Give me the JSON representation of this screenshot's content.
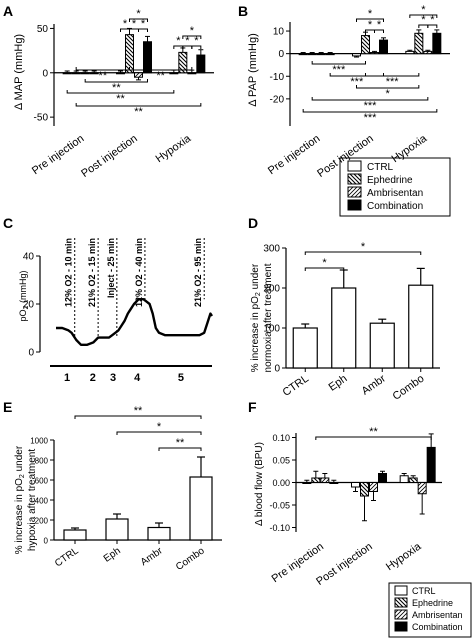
{
  "panel_labels": [
    "A",
    "B",
    "C",
    "D",
    "E",
    "F"
  ],
  "legend_ab": [
    "CTRL",
    "Ephedrine",
    "Ambrisentan",
    "Combination"
  ],
  "legend_f": [
    "CTRL",
    "Ephedrine",
    "Ambrisentan",
    "Combination"
  ],
  "colors": {
    "ink": "#000000",
    "paper": "#ffffff",
    "hatch": "#000000"
  },
  "chart_data": [
    {
      "panel": "A",
      "type": "bar",
      "ylabel": "Δ MAP (mmHg)",
      "ylim": [
        -60,
        55
      ],
      "yticks": [
        -50,
        0,
        50
      ],
      "categories": [
        "Pre injection",
        "Post injection",
        "Hypoxia"
      ],
      "series": [
        {
          "name": "CTRL",
          "values": [
            0,
            0,
            0
          ],
          "errors": [
            2,
            2,
            3
          ]
        },
        {
          "name": "Ephedrine",
          "values": [
            0,
            43,
            23
          ],
          "errors": [
            2,
            7,
            5
          ]
        },
        {
          "name": "Ambrisentan",
          "values": [
            0,
            -5,
            0
          ],
          "errors": [
            2,
            3,
            3
          ]
        },
        {
          "name": "Combination",
          "values": [
            0,
            35,
            20
          ],
          "errors": [
            2,
            6,
            6
          ]
        }
      ],
      "annotations": [
        "*",
        "*",
        "*",
        "*",
        "*",
        "*",
        "*",
        "*",
        "**",
        "**",
        "**",
        "**",
        "**"
      ]
    },
    {
      "panel": "B",
      "type": "bar",
      "ylabel": "Δ PAP (mmHg)",
      "ylim": [
        -32,
        14
      ],
      "yticks": [
        -20,
        -10,
        0,
        10
      ],
      "categories": [
        "Pre injection",
        "Post injection",
        "Hypoxia"
      ],
      "series": [
        {
          "name": "CTRL",
          "values": [
            0,
            -1,
            1
          ],
          "errors": [
            0.5,
            0.5,
            0.5
          ]
        },
        {
          "name": "Ephedrine",
          "values": [
            0,
            8,
            9
          ],
          "errors": [
            0.5,
            1.5,
            1.5
          ]
        },
        {
          "name": "Ambrisentan",
          "values": [
            0,
            0.5,
            1
          ],
          "errors": [
            0.5,
            0.5,
            0.5
          ]
        },
        {
          "name": "Combination",
          "values": [
            0,
            6,
            9
          ],
          "errors": [
            0.5,
            1,
            1.5
          ]
        }
      ],
      "annotations": [
        "*",
        "*",
        "*",
        "*",
        "*",
        "*",
        "***",
        "***",
        "***",
        "*",
        "***",
        "***"
      ]
    },
    {
      "panel": "C",
      "type": "line",
      "ylabel": "pO2 (mmHg)",
      "ylim": [
        0,
        40
      ],
      "yticks": [
        0,
        20,
        40
      ],
      "markers": [
        "12% O2 - 10 min",
        "21% O2 - 15 min",
        "Inject - 25 min",
        "12% O2 - 40 min",
        "21% O2 - 95 min"
      ],
      "phases": [
        "1",
        "2",
        "3",
        "4",
        "5"
      ]
    },
    {
      "panel": "D",
      "type": "bar",
      "ylabel": "% increase in pO2 under normoxia after treatment",
      "ylim": [
        0,
        300
      ],
      "yticks": [
        0,
        100,
        200,
        300
      ],
      "categories": [
        "CTRL",
        "Eph",
        "Ambr",
        "Combo"
      ],
      "values": [
        100,
        200,
        112,
        207
      ],
      "errors": [
        10,
        45,
        10,
        42
      ],
      "annotations": [
        "*",
        "*"
      ]
    },
    {
      "panel": "E",
      "type": "bar",
      "ylabel": "% increase in pO2 under hypoxia after treatment",
      "ylim": [
        0,
        1000
      ],
      "yticks": [
        0,
        200,
        400,
        600,
        800,
        1000
      ],
      "categories": [
        "CTRL",
        "Eph",
        "Ambr",
        "Combo"
      ],
      "values": [
        100,
        210,
        125,
        630
      ],
      "errors": [
        20,
        50,
        45,
        200
      ],
      "annotations": [
        "**",
        "*",
        "**"
      ]
    },
    {
      "panel": "F",
      "type": "bar",
      "ylabel": "Δ blood flow (BPU)",
      "ylim": [
        -0.11,
        0.11
      ],
      "yticks": [
        -0.1,
        -0.05,
        0.0,
        0.05,
        0.1
      ],
      "tick_labels": [
        "-0.10",
        "-0.05",
        "0.00",
        "0.05",
        "0.10"
      ],
      "categories": [
        "Pre injection",
        "Post injection",
        "Hypoxia"
      ],
      "series": [
        {
          "name": "CTRL",
          "values": [
            0.0,
            -0.01,
            0.015
          ],
          "errors": [
            0.005,
            0.01,
            0.005
          ]
        },
        {
          "name": "Ephedrine",
          "values": [
            0.01,
            -0.03,
            0.01
          ],
          "errors": [
            0.015,
            0.055,
            0.005
          ]
        },
        {
          "name": "Ambrisentan",
          "values": [
            0.01,
            -0.02,
            -0.025
          ],
          "errors": [
            0.01,
            0.02,
            0.045
          ]
        },
        {
          "name": "Combination",
          "values": [
            0.0,
            0.02,
            0.078
          ],
          "errors": [
            0.005,
            0.005,
            0.03
          ]
        }
      ],
      "annotations": [
        "**"
      ]
    }
  ]
}
